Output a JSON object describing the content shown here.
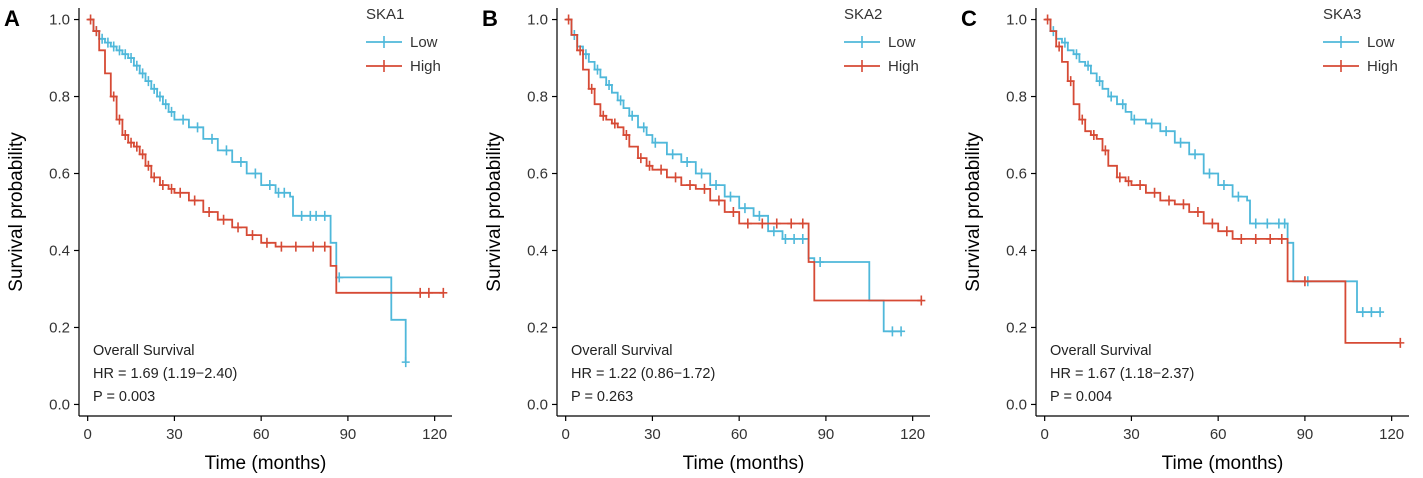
{
  "figure": {
    "panels": [
      "A",
      "B",
      "C"
    ]
  },
  "chart_data": [
    {
      "type": "line",
      "panel_label": "A",
      "title": "",
      "xlabel": "Time (months)",
      "ylabel": "Survival probability",
      "xlim": [
        -3,
        126
      ],
      "ylim": [
        -0.03,
        1.03
      ],
      "xticks": [
        0,
        30,
        60,
        90,
        120
      ],
      "yticks": [
        "0.0",
        "0.2",
        "0.4",
        "0.6",
        "0.8",
        "1.0"
      ],
      "legend_title": "SKA1",
      "legend_position": "top-right",
      "annotation": [
        "Overall Survival",
        "HR = 1.69 (1.19−2.40)",
        "P = 0.003"
      ],
      "series": [
        {
          "name": "Low",
          "color": "#4fb8da",
          "x": [
            0,
            2,
            4,
            6,
            8,
            10,
            12,
            14,
            16,
            18,
            20,
            22,
            24,
            26,
            28,
            30,
            35,
            40,
            45,
            50,
            55,
            60,
            65,
            70,
            71,
            75,
            80,
            84,
            86,
            90,
            105,
            107,
            110
          ],
          "y": [
            1.0,
            0.97,
            0.95,
            0.94,
            0.93,
            0.92,
            0.91,
            0.9,
            0.88,
            0.86,
            0.84,
            0.82,
            0.8,
            0.78,
            0.76,
            0.74,
            0.72,
            0.69,
            0.66,
            0.63,
            0.6,
            0.57,
            0.55,
            0.54,
            0.49,
            0.49,
            0.49,
            0.42,
            0.33,
            0.33,
            0.22,
            0.22,
            0.11
          ],
          "censor": [
            3,
            5,
            7,
            9,
            11,
            13,
            15,
            17,
            19,
            21,
            23,
            25,
            27,
            29,
            33,
            38,
            43,
            48,
            53,
            58,
            63,
            66,
            68,
            74,
            77,
            79,
            82,
            87,
            110
          ]
        },
        {
          "name": "High",
          "color": "#d64a35",
          "x": [
            0,
            2,
            4,
            6,
            8,
            10,
            12,
            14,
            16,
            18,
            20,
            22,
            25,
            28,
            30,
            35,
            40,
            45,
            50,
            55,
            60,
            65,
            70,
            80,
            84,
            86,
            90,
            115,
            123
          ],
          "y": [
            1.0,
            0.97,
            0.92,
            0.86,
            0.8,
            0.74,
            0.7,
            0.68,
            0.67,
            0.65,
            0.62,
            0.59,
            0.57,
            0.56,
            0.55,
            0.53,
            0.5,
            0.48,
            0.46,
            0.44,
            0.42,
            0.41,
            0.41,
            0.41,
            0.36,
            0.29,
            0.29,
            0.29,
            0.29
          ],
          "censor": [
            1,
            3,
            9,
            11,
            13,
            15,
            17,
            19,
            21,
            23,
            26,
            29,
            32,
            37,
            42,
            47,
            52,
            57,
            62,
            67,
            72,
            78,
            82,
            115,
            118,
            123
          ]
        }
      ]
    },
    {
      "type": "line",
      "panel_label": "B",
      "title": "",
      "xlabel": "Time (months)",
      "ylabel": "Survival probability",
      "xlim": [
        -3,
        126
      ],
      "ylim": [
        -0.03,
        1.03
      ],
      "xticks": [
        0,
        30,
        60,
        90,
        120
      ],
      "yticks": [
        "0.0",
        "0.2",
        "0.4",
        "0.6",
        "0.8",
        "1.0"
      ],
      "legend_title": "SKA2",
      "legend_position": "top-right",
      "annotation": [
        "Overall Survival",
        "HR = 1.22 (0.86−1.72)",
        "P = 0.263"
      ],
      "series": [
        {
          "name": "Low",
          "color": "#4fb8da",
          "x": [
            0,
            2,
            4,
            6,
            8,
            10,
            12,
            14,
            16,
            18,
            20,
            22,
            25,
            28,
            30,
            35,
            40,
            45,
            50,
            55,
            60,
            65,
            70,
            75,
            80,
            84,
            86,
            100,
            105,
            110,
            116
          ],
          "y": [
            1.0,
            0.96,
            0.93,
            0.91,
            0.89,
            0.87,
            0.85,
            0.83,
            0.81,
            0.79,
            0.77,
            0.75,
            0.72,
            0.7,
            0.68,
            0.65,
            0.63,
            0.6,
            0.57,
            0.54,
            0.51,
            0.49,
            0.45,
            0.43,
            0.43,
            0.38,
            0.37,
            0.37,
            0.27,
            0.19,
            0.19
          ],
          "censor": [
            3,
            7,
            11,
            15,
            19,
            23,
            27,
            31,
            37,
            42,
            47,
            52,
            57,
            62,
            67,
            72,
            76,
            79,
            82,
            88,
            113,
            116
          ]
        },
        {
          "name": "High",
          "color": "#d64a35",
          "x": [
            0,
            2,
            4,
            6,
            8,
            10,
            12,
            14,
            16,
            18,
            20,
            22,
            25,
            28,
            30,
            35,
            40,
            45,
            50,
            55,
            60,
            65,
            70,
            75,
            80,
            84,
            86,
            100,
            123
          ],
          "y": [
            1.0,
            0.96,
            0.92,
            0.87,
            0.82,
            0.78,
            0.75,
            0.74,
            0.73,
            0.72,
            0.7,
            0.67,
            0.64,
            0.62,
            0.61,
            0.59,
            0.57,
            0.56,
            0.53,
            0.5,
            0.47,
            0.47,
            0.47,
            0.47,
            0.47,
            0.37,
            0.27,
            0.27,
            0.27
          ],
          "censor": [
            1,
            5,
            9,
            13,
            17,
            21,
            26,
            29,
            33,
            38,
            43,
            48,
            53,
            58,
            63,
            68,
            73,
            78,
            82,
            123
          ]
        }
      ]
    },
    {
      "type": "line",
      "panel_label": "C",
      "title": "",
      "xlabel": "Time (months)",
      "ylabel": "Survival probability",
      "xlim": [
        -3,
        126
      ],
      "ylim": [
        -0.03,
        1.03
      ],
      "xticks": [
        0,
        30,
        60,
        90,
        120
      ],
      "yticks": [
        "0.0",
        "0.2",
        "0.4",
        "0.6",
        "0.8",
        "1.0"
      ],
      "legend_title": "SKA3",
      "legend_position": "top-right",
      "annotation": [
        "Overall Survival",
        "HR = 1.67 (1.18−2.37)",
        "P = 0.004"
      ],
      "series": [
        {
          "name": "Low",
          "color": "#4fb8da",
          "x": [
            0,
            2,
            4,
            6,
            8,
            10,
            12,
            14,
            16,
            18,
            20,
            22,
            25,
            28,
            30,
            35,
            40,
            45,
            50,
            55,
            60,
            65,
            70,
            71,
            75,
            80,
            84,
            86,
            91,
            95,
            105,
            108,
            116
          ],
          "y": [
            1.0,
            0.97,
            0.95,
            0.94,
            0.92,
            0.91,
            0.89,
            0.88,
            0.86,
            0.84,
            0.82,
            0.8,
            0.78,
            0.76,
            0.74,
            0.73,
            0.71,
            0.68,
            0.65,
            0.6,
            0.57,
            0.54,
            0.53,
            0.47,
            0.47,
            0.47,
            0.42,
            0.32,
            0.32,
            0.32,
            0.32,
            0.24,
            0.24
          ],
          "censor": [
            3,
            7,
            11,
            15,
            19,
            23,
            27,
            31,
            37,
            42,
            47,
            52,
            57,
            62,
            67,
            73,
            77,
            81,
            83,
            91,
            110,
            113,
            116
          ]
        },
        {
          "name": "High",
          "color": "#d64a35",
          "x": [
            0,
            2,
            4,
            6,
            8,
            10,
            12,
            14,
            16,
            18,
            20,
            22,
            25,
            28,
            30,
            35,
            40,
            45,
            50,
            55,
            60,
            65,
            70,
            80,
            84,
            86,
            100,
            104,
            123
          ],
          "y": [
            1.0,
            0.97,
            0.93,
            0.89,
            0.84,
            0.78,
            0.74,
            0.71,
            0.7,
            0.69,
            0.66,
            0.62,
            0.59,
            0.58,
            0.57,
            0.55,
            0.53,
            0.52,
            0.5,
            0.47,
            0.45,
            0.43,
            0.43,
            0.43,
            0.32,
            0.32,
            0.32,
            0.16,
            0.16
          ],
          "censor": [
            1,
            5,
            9,
            13,
            17,
            21,
            26,
            29,
            33,
            38,
            43,
            48,
            53,
            58,
            63,
            68,
            73,
            78,
            82,
            90,
            123
          ]
        }
      ]
    }
  ]
}
